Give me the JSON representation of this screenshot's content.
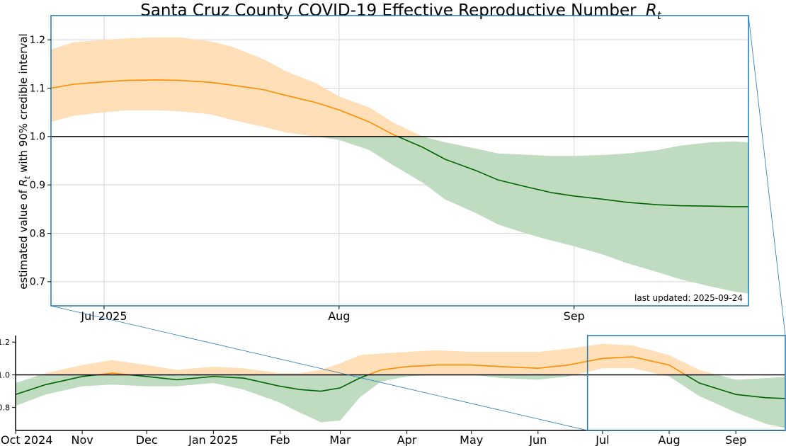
{
  "colors": {
    "above_one": "#ff8c00",
    "above_one_band": "#ffdfb8",
    "below_one": "#006400",
    "below_one_band": "#c0dcc0",
    "reference_line": "#000000",
    "frame": "#1f77b4",
    "grid": "#d3d3d3",
    "note": "#999999"
  },
  "chart_data": [
    {
      "id": "main",
      "type": "area",
      "title": "Santa Cruz County COVID-19 Effective Reproductive Number",
      "title_symbol": "R",
      "title_subscript": "t",
      "ylabel_before": "estimated value of ",
      "ylabel_symbol": "R",
      "ylabel_subscript": "t",
      "ylabel_after": " with 90% credible interval",
      "note": "last updated: 2025-09-24",
      "xlim": [
        "2025-06-24",
        "2025-09-24"
      ],
      "ylim": [
        0.65,
        1.25
      ],
      "x_ticks": [
        {
          "date": "2025-07-01",
          "label": "Jul 2025"
        },
        {
          "date": "2025-08-01",
          "label": "Aug"
        },
        {
          "date": "2025-09-01",
          "label": "Sep"
        }
      ],
      "y_ticks": [
        {
          "value": 0.7,
          "label": "0.7"
        },
        {
          "value": 0.8,
          "label": "0.8"
        },
        {
          "value": 0.9,
          "label": "0.9"
        },
        {
          "value": 1.0,
          "label": "1.0"
        },
        {
          "value": 1.1,
          "label": "1.1"
        },
        {
          "value": 1.2,
          "label": "1.2"
        }
      ],
      "reference_value": 1.0,
      "grid": true,
      "series": [
        {
          "x": [
            "2025-06-24",
            "2025-06-27",
            "2025-07-01",
            "2025-07-04",
            "2025-07-08",
            "2025-07-11",
            "2025-07-15",
            "2025-07-18",
            "2025-07-22",
            "2025-07-25",
            "2025-07-29",
            "2025-08-01",
            "2025-08-05",
            "2025-08-08",
            "2025-08-12",
            "2025-08-15",
            "2025-08-19",
            "2025-08-22",
            "2025-08-26",
            "2025-08-29",
            "2025-09-01",
            "2025-09-05",
            "2025-09-08",
            "2025-09-12",
            "2025-09-15",
            "2025-09-19",
            "2025-09-22",
            "2025-09-24"
          ],
          "y": [
            1.1,
            1.108,
            1.113,
            1.116,
            1.117,
            1.116,
            1.112,
            1.106,
            1.097,
            1.085,
            1.07,
            1.055,
            1.03,
            1.005,
            0.978,
            0.953,
            0.93,
            0.91,
            0.895,
            0.884,
            0.877,
            0.87,
            0.864,
            0.859,
            0.857,
            0.856,
            0.855,
            0.855
          ],
          "lower": [
            1.03,
            1.043,
            1.05,
            1.054,
            1.054,
            1.052,
            1.046,
            1.034,
            1.02,
            1.008,
            1.0,
            0.993,
            0.972,
            0.942,
            0.905,
            0.87,
            0.842,
            0.818,
            0.798,
            0.785,
            0.773,
            0.755,
            0.738,
            0.72,
            0.705,
            0.69,
            0.68,
            0.675
          ],
          "upper": [
            1.18,
            1.195,
            1.2,
            1.203,
            1.205,
            1.205,
            1.197,
            1.185,
            1.16,
            1.135,
            1.11,
            1.083,
            1.06,
            1.03,
            1.0,
            0.988,
            0.975,
            0.965,
            0.962,
            0.96,
            0.96,
            0.962,
            0.965,
            0.972,
            0.981,
            0.988,
            0.99,
            0.988
          ]
        }
      ]
    },
    {
      "id": "overview",
      "type": "area",
      "xlim": [
        "2024-10-01",
        "2025-09-24"
      ],
      "ylim": [
        0.66,
        1.24
      ],
      "x_ticks": [
        {
          "date": "2024-10-01",
          "label": "Oct 2024"
        },
        {
          "date": "2024-11-01",
          "label": "Nov"
        },
        {
          "date": "2024-12-01",
          "label": "Dec"
        },
        {
          "date": "2025-01-01",
          "label": "Jan 2025"
        },
        {
          "date": "2025-02-01",
          "label": "Feb"
        },
        {
          "date": "2025-03-01",
          "label": "Mar"
        },
        {
          "date": "2025-04-01",
          "label": "Apr"
        },
        {
          "date": "2025-05-01",
          "label": "May"
        },
        {
          "date": "2025-06-01",
          "label": "Jun"
        },
        {
          "date": "2025-07-01",
          "label": "Jul"
        },
        {
          "date": "2025-08-01",
          "label": "Aug"
        },
        {
          "date": "2025-09-01",
          "label": "Sep"
        }
      ],
      "y_ticks": [
        {
          "value": 0.8,
          "label": "0.8"
        },
        {
          "value": 1.0,
          "label": "1.0"
        },
        {
          "value": 1.2,
          "label": "1.2"
        }
      ],
      "reference_value": 1.0,
      "grid": false,
      "zoom_window": [
        "2025-06-24",
        "2025-09-24"
      ],
      "series": [
        {
          "x": [
            "2024-10-01",
            "2024-10-15",
            "2024-11-01",
            "2024-11-15",
            "2024-12-01",
            "2024-12-15",
            "2025-01-01",
            "2025-01-15",
            "2025-02-01",
            "2025-02-10",
            "2025-02-20",
            "2025-03-01",
            "2025-03-10",
            "2025-03-20",
            "2025-04-01",
            "2025-04-15",
            "2025-05-01",
            "2025-05-15",
            "2025-06-01",
            "2025-06-15",
            "2025-07-01",
            "2025-07-15",
            "2025-08-01",
            "2025-08-15",
            "2025-09-01",
            "2025-09-15",
            "2025-09-24"
          ],
          "y": [
            0.88,
            0.94,
            0.99,
            1.01,
            0.99,
            0.97,
            0.99,
            0.98,
            0.93,
            0.91,
            0.9,
            0.92,
            0.98,
            1.03,
            1.05,
            1.06,
            1.06,
            1.05,
            1.04,
            1.06,
            1.1,
            1.11,
            1.06,
            0.95,
            0.88,
            0.86,
            0.855
          ],
          "lower": [
            0.81,
            0.88,
            0.93,
            0.94,
            0.93,
            0.93,
            0.95,
            0.91,
            0.83,
            0.77,
            0.71,
            0.72,
            0.86,
            0.96,
            0.99,
            1.0,
            1.0,
            0.98,
            0.97,
            0.99,
            1.04,
            1.04,
            0.99,
            0.87,
            0.77,
            0.7,
            0.675
          ],
          "upper": [
            0.95,
            1.01,
            1.06,
            1.09,
            1.06,
            1.03,
            1.05,
            1.04,
            1.01,
            1.01,
            1.03,
            1.07,
            1.12,
            1.13,
            1.14,
            1.15,
            1.14,
            1.14,
            1.14,
            1.16,
            1.19,
            1.18,
            1.12,
            1.03,
            0.97,
            0.98,
            0.988
          ]
        }
      ]
    }
  ]
}
